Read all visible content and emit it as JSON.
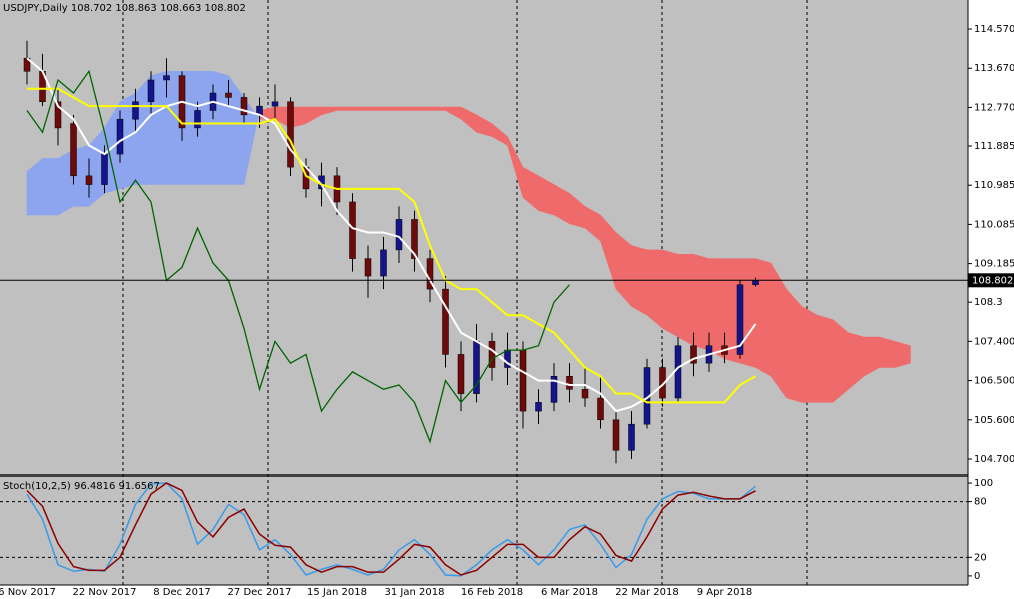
{
  "chart_data": [
    {
      "type": "candlestick",
      "title": "USDJPY,Daily  108.702 108.863 108.663 108.802",
      "categories": [
        "6 Nov 2017",
        null,
        null,
        null,
        null,
        "22 Nov 2017",
        null,
        null,
        null,
        null,
        "8 Dec 2017",
        null,
        null,
        null,
        null,
        "27 Dec 2017",
        null,
        null,
        null,
        null,
        "15 Jan 2018",
        null,
        null,
        null,
        null,
        "31 Jan 2018",
        null,
        null,
        null,
        null,
        "16 Feb 2018",
        null,
        null,
        null,
        null,
        "6 Mar 2018",
        null,
        null,
        null,
        null,
        "22 Mar 2018",
        null,
        null,
        null,
        null,
        "9 Apr 2018",
        null,
        null,
        null,
        null,
        null,
        null,
        null,
        null,
        null,
        null,
        null,
        null
      ],
      "open": [
        113.9,
        113.6,
        112.9,
        112.4,
        111.2,
        111.0,
        111.7,
        112.5,
        112.9,
        113.4,
        113.5,
        112.3,
        112.7,
        113.1,
        113.0,
        112.6,
        112.8,
        112.9,
        111.4,
        110.9,
        111.2,
        110.6,
        109.3,
        108.9,
        109.5,
        110.2,
        109.3,
        108.6,
        107.1,
        106.2,
        107.4,
        106.8,
        107.2,
        105.8,
        106.0,
        106.6,
        106.3,
        106.1,
        105.6,
        104.9,
        105.5,
        106.8,
        106.1,
        107.3,
        106.9,
        107.3,
        107.1,
        108.702,
        null,
        null,
        null,
        null,
        null,
        null,
        null,
        null,
        null,
        null
      ],
      "high": [
        114.3,
        114.0,
        113.2,
        112.6,
        111.6,
        111.9,
        112.7,
        113.2,
        113.6,
        113.9,
        113.6,
        112.9,
        113.3,
        113.4,
        113.1,
        113.0,
        113.3,
        113.0,
        111.6,
        111.5,
        111.4,
        110.8,
        109.6,
        109.8,
        110.5,
        110.4,
        109.5,
        108.9,
        107.4,
        107.8,
        107.6,
        107.6,
        107.4,
        106.3,
        106.9,
        106.9,
        106.8,
        106.6,
        105.8,
        105.8,
        107.0,
        107.0,
        107.5,
        107.6,
        107.6,
        107.6,
        108.8,
        108.863,
        null,
        null,
        null,
        null,
        null,
        null,
        null,
        null,
        null,
        null
      ],
      "low": [
        113.3,
        112.8,
        111.9,
        111.0,
        110.7,
        110.8,
        111.5,
        112.2,
        112.6,
        113.0,
        112.0,
        112.1,
        112.5,
        112.8,
        112.4,
        112.3,
        112.5,
        111.2,
        110.7,
        110.5,
        110.3,
        109.0,
        108.4,
        108.6,
        109.2,
        109.0,
        108.3,
        106.8,
        105.8,
        106.0,
        106.5,
        106.4,
        105.4,
        105.5,
        105.8,
        106.0,
        105.9,
        105.4,
        104.6,
        104.7,
        105.4,
        105.9,
        106.0,
        106.6,
        106.7,
        106.9,
        107.0,
        108.663,
        null,
        null,
        null,
        null,
        null,
        null,
        null,
        null,
        null,
        null
      ],
      "close": [
        113.6,
        112.9,
        112.3,
        111.2,
        111.0,
        111.7,
        112.5,
        112.9,
        113.4,
        113.5,
        112.3,
        112.7,
        113.1,
        113.0,
        112.6,
        112.8,
        112.9,
        111.4,
        110.9,
        111.2,
        110.6,
        109.3,
        108.9,
        109.5,
        110.2,
        109.3,
        108.6,
        107.1,
        106.2,
        107.4,
        106.8,
        107.2,
        105.8,
        106.0,
        106.6,
        106.3,
        106.1,
        105.6,
        104.9,
        105.5,
        106.8,
        106.1,
        107.3,
        106.9,
        107.3,
        107.1,
        108.7,
        108.802,
        null,
        null,
        null,
        null,
        null,
        null,
        null,
        null,
        null,
        null
      ],
      "up_color": "#14148c",
      "down_color": "#6e0a0a",
      "lines": [
        {
          "color": "#ffffff",
          "values": [
            113.9,
            113.6,
            112.8,
            112.5,
            111.9,
            111.7,
            112.0,
            112.2,
            112.6,
            112.8,
            112.9,
            112.8,
            112.9,
            112.8,
            112.7,
            112.6,
            112.4,
            111.8,
            111.4,
            111.0,
            110.4,
            110.0,
            109.9,
            109.9,
            109.8,
            109.4,
            108.8,
            108.2,
            107.6,
            107.4,
            107.2,
            106.9,
            106.7,
            106.5,
            106.5,
            106.4,
            106.4,
            106.2,
            105.8,
            105.9,
            106.1,
            106.4,
            106.8,
            107.0,
            107.1,
            107.2,
            107.3,
            107.8,
            null,
            null,
            null,
            null,
            null,
            null,
            null,
            null,
            null,
            null
          ]
        },
        {
          "color": "#ffff00",
          "values": [
            113.2,
            113.2,
            113.2,
            113.0,
            112.8,
            112.8,
            112.8,
            112.8,
            112.8,
            112.8,
            112.4,
            112.4,
            112.4,
            112.4,
            112.4,
            112.4,
            112.5,
            112.0,
            111.2,
            111.0,
            110.9,
            110.9,
            110.9,
            110.9,
            110.9,
            110.6,
            109.6,
            108.8,
            108.6,
            108.6,
            108.3,
            108.0,
            108.0,
            107.8,
            107.6,
            107.2,
            106.8,
            106.6,
            106.2,
            106.2,
            106.0,
            106.0,
            106.0,
            106.0,
            106.0,
            106.0,
            106.4,
            106.6,
            null,
            null,
            null,
            null,
            null,
            null,
            null,
            null,
            null,
            null
          ]
        },
        {
          "color": "#006400",
          "values": [
            112.7,
            112.2,
            113.4,
            113.1,
            113.6,
            112.2,
            110.6,
            111.1,
            110.6,
            108.8,
            109.1,
            110.0,
            109.2,
            108.8,
            107.7,
            106.3,
            107.4,
            106.9,
            107.1,
            105.8,
            106.3,
            106.7,
            106.5,
            106.3,
            106.4,
            106.0,
            105.1,
            106.5,
            106.0,
            106.4,
            107.0,
            107.2,
            107.2,
            107.3,
            108.3,
            108.7,
            null,
            null,
            null,
            null,
            null,
            null,
            null,
            null,
            null,
            null,
            null,
            null,
            null,
            null,
            null,
            null,
            null,
            null,
            null,
            null,
            null,
            null
          ]
        }
      ],
      "cloud": {
        "span_a": [
          111.3,
          111.6,
          111.6,
          111.8,
          111.9,
          112.3,
          112.9,
          113.1,
          113.5,
          113.6,
          113.6,
          113.6,
          113.6,
          113.5,
          113.0,
          112.5,
          112.5,
          112.3,
          112.4,
          112.6,
          112.7,
          112.7,
          112.7,
          112.7,
          112.7,
          112.7,
          112.7,
          112.7,
          112.5,
          112.2,
          112.1,
          111.9,
          110.7,
          110.4,
          110.3,
          110.1,
          110.0,
          109.7,
          108.6,
          108.2,
          108.0,
          107.7,
          107.5,
          107.3,
          107.2,
          107.0,
          106.9,
          106.8,
          106.6,
          106.1,
          106.0,
          106.0,
          106.0,
          106.3,
          106.6,
          106.8,
          106.8,
          106.9
        ],
        "span_b": [
          110.3,
          110.3,
          110.3,
          110.5,
          110.5,
          110.8,
          110.9,
          111.0,
          111.0,
          111.0,
          111.0,
          111.0,
          111.0,
          111.0,
          111.0,
          112.7,
          112.78,
          112.78,
          112.78,
          112.78,
          112.78,
          112.78,
          112.78,
          112.78,
          112.78,
          112.78,
          112.78,
          112.78,
          112.78,
          112.6,
          112.4,
          112.1,
          111.4,
          111.2,
          111.0,
          110.8,
          110.5,
          110.3,
          109.9,
          109.6,
          109.5,
          109.5,
          109.4,
          109.4,
          109.3,
          109.3,
          109.3,
          109.3,
          109.2,
          108.6,
          108.2,
          108.0,
          107.9,
          107.6,
          107.5,
          107.5,
          107.4,
          107.3
        ],
        "bull_color": "#8ca5ee",
        "bear_color": "#ef6b6b"
      },
      "last_price": 108.802,
      "ylim": [
        104.356,
        115.236
      ],
      "yticks": [
        {
          "value": 104.7,
          "label": "104.700"
        },
        {
          "value": 105.6,
          "label": "105.600"
        },
        {
          "value": 106.5,
          "label": "106.500"
        },
        {
          "value": 107.4,
          "label": "107.400"
        },
        108.3,
        {
          "value": 109.185,
          "label": "109.185"
        },
        110.085,
        110.985,
        111.885,
        {
          "value": 112.77,
          "label": "112.770"
        },
        {
          "value": 113.67,
          "label": "113.670"
        },
        {
          "value": 114.57,
          "label": "114.570"
        }
      ]
    },
    {
      "type": "line",
      "title": "Stoch(10,2,5) 96.4816 91.6567",
      "series": [
        {
          "color": "#3a9ae8",
          "values": [
            88,
            61,
            12,
            5,
            7,
            5,
            34,
            77,
            99,
            100,
            83,
            34,
            50,
            77,
            66,
            28,
            39,
            23,
            1,
            7,
            12,
            7,
            1,
            7,
            28,
            39,
            23,
            1,
            0,
            12,
            28,
            39,
            28,
            12,
            28,
            50,
            55,
            34,
            9,
            23,
            61,
            83,
            91,
            89,
            83,
            83,
            83,
            96.4816
          ]
        },
        {
          "color": "#8b0000",
          "values": [
            92,
            75,
            35,
            10,
            6,
            6,
            20,
            55,
            88,
            100,
            92,
            58,
            42,
            63,
            72,
            45,
            33,
            31,
            12,
            4,
            10,
            10,
            4,
            4,
            18,
            34,
            31,
            12,
            1,
            6,
            20,
            34,
            34,
            20,
            20,
            39,
            53,
            45,
            22,
            16,
            42,
            72,
            87,
            90,
            86,
            83,
            83,
            91.6567
          ]
        }
      ],
      "levels": [
        20,
        80
      ],
      "ylim": [
        -9.8,
        106.5
      ],
      "yticks": [
        0,
        20,
        80,
        100
      ]
    }
  ]
}
